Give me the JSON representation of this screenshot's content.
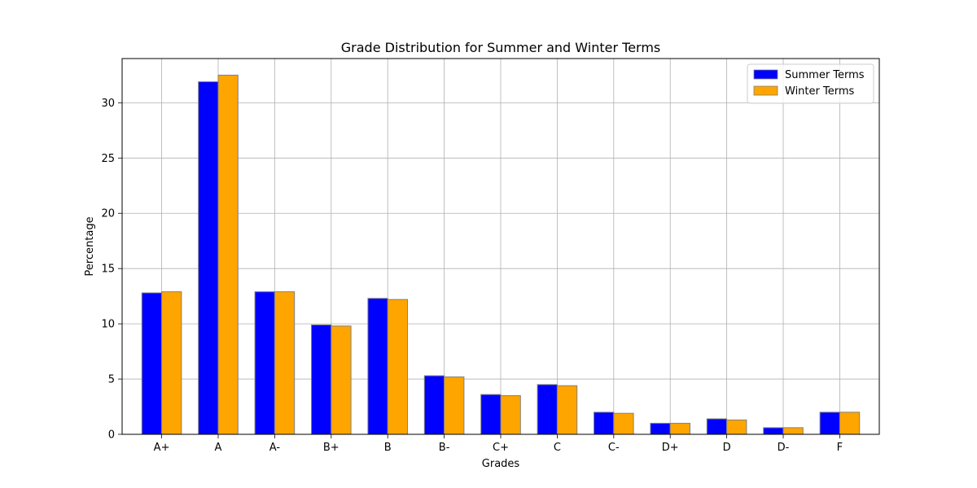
{
  "chart_data": {
    "type": "bar",
    "title": "Grade Distribution for Summer and Winter Terms",
    "xlabel": "Grades",
    "ylabel": "Percentage",
    "categories": [
      "A+",
      "A",
      "A-",
      "B+",
      "B",
      "B-",
      "C+",
      "C",
      "C-",
      "D+",
      "D",
      "D-",
      "F"
    ],
    "series": [
      {
        "name": "Summer Terms",
        "color": "#0000ff",
        "values": [
          12.8,
          31.9,
          12.9,
          9.9,
          12.3,
          5.3,
          3.6,
          4.5,
          2.0,
          1.0,
          1.4,
          0.6,
          2.0
        ]
      },
      {
        "name": "Winter Terms",
        "color": "#ffa500",
        "values": [
          12.9,
          32.5,
          12.9,
          9.8,
          12.2,
          5.2,
          3.5,
          4.4,
          1.9,
          1.0,
          1.3,
          0.6,
          2.0
        ]
      }
    ],
    "ylim": [
      0,
      34
    ],
    "yticks": [
      0,
      5,
      10,
      15,
      20,
      25,
      30
    ],
    "grid": true,
    "legend_position": "top-right",
    "bar_edge_color": "#808080"
  }
}
